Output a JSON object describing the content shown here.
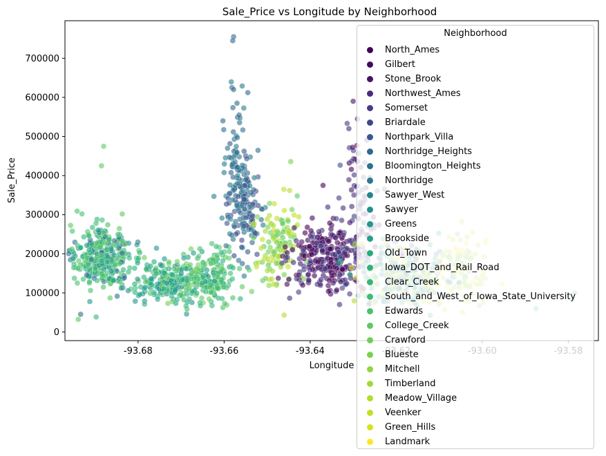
{
  "chart_data": {
    "type": "scatter",
    "title": "Sale_Price vs Longitude by Neighborhood",
    "xlabel": "Longitude",
    "ylabel": "Sale_Price",
    "xlim": [
      -93.697,
      -93.573
    ],
    "ylim": [
      -22000,
      796000
    ],
    "xticks": [
      "-93.68",
      "-93.66",
      "-93.64",
      "-93.62",
      "-93.60",
      "-93.58"
    ],
    "xtick_values": [
      -93.68,
      -93.66,
      -93.64,
      -93.62,
      -93.6,
      -93.58
    ],
    "yticks": [
      "0",
      "100000",
      "200000",
      "300000",
      "400000",
      "500000",
      "600000",
      "700000"
    ],
    "ytick_values": [
      0,
      100000,
      200000,
      300000,
      400000,
      500000,
      600000,
      700000
    ],
    "grid": false,
    "legend": {
      "title": "Neighborhood",
      "placement": "upper-right",
      "items": [
        {
          "name": "North_Ames",
          "color": "#440154"
        },
        {
          "name": "Gilbert",
          "color": "#46085c"
        },
        {
          "name": "Stone_Brook",
          "color": "#471365"
        },
        {
          "name": "Northwest_Ames",
          "color": "#472d7b"
        },
        {
          "name": "Somerset",
          "color": "#433e85"
        },
        {
          "name": "Briardale",
          "color": "#3e4989"
        },
        {
          "name": "Northpark_Villa",
          "color": "#38588c"
        },
        {
          "name": "Northridge_Heights",
          "color": "#31688e"
        },
        {
          "name": "Bloomington_Heights",
          "color": "#2c728e"
        },
        {
          "name": "Northridge",
          "color": "#287c8e"
        },
        {
          "name": "Sawyer_West",
          "color": "#24868e"
        },
        {
          "name": "Sawyer",
          "color": "#21918c"
        },
        {
          "name": "Greens",
          "color": "#1f9a8a"
        },
        {
          "name": "Brookside",
          "color": "#1fa287"
        },
        {
          "name": "Old_Town",
          "color": "#25ac82"
        },
        {
          "name": "Iowa_DOT_and_Rail_Road",
          "color": "#2db27d"
        },
        {
          "name": "Clear_Creek",
          "color": "#35b779"
        },
        {
          "name": "South_and_West_of_Iowa_State_University",
          "color": "#3fbc73"
        },
        {
          "name": "Edwards",
          "color": "#4ac16d"
        },
        {
          "name": "College_Creek",
          "color": "#5ec962"
        },
        {
          "name": "Crawford",
          "color": "#6ece58"
        },
        {
          "name": "Blueste",
          "color": "#7ad151"
        },
        {
          "name": "Mitchell",
          "color": "#8fd744"
        },
        {
          "name": "Timberland",
          "color": "#a0da39"
        },
        {
          "name": "Meadow_Village",
          "color": "#b0dd2f"
        },
        {
          "name": "Veenker",
          "color": "#c2df23"
        },
        {
          "name": "Green_Hills",
          "color": "#d8e219"
        },
        {
          "name": "Landmark",
          "color": "#fde725"
        }
      ]
    },
    "clusters": [
      {
        "x": -93.6885,
        "y": 190000,
        "sx": 0.0035,
        "sy": 40000,
        "n": 340,
        "series": [
          16,
          17,
          18,
          12,
          19,
          15,
          8
        ]
      },
      {
        "x": -93.6735,
        "y": 130000,
        "sx": 0.0035,
        "sy": 28000,
        "n": 220,
        "series": [
          11,
          12,
          13,
          14,
          15,
          18,
          20
        ]
      },
      {
        "x": -93.6635,
        "y": 140000,
        "sx": 0.0032,
        "sy": 35000,
        "n": 200,
        "series": [
          15,
          16,
          17,
          18,
          19,
          20,
          12
        ]
      },
      {
        "x": -93.6555,
        "y": 330000,
        "sx": 0.0022,
        "sy": 70000,
        "n": 160,
        "series": [
          7,
          8,
          9,
          5,
          6
        ]
      },
      {
        "x": -93.6575,
        "y": 470000,
        "sx": 0.0012,
        "sy": 80000,
        "n": 40,
        "series": [
          7,
          8,
          9
        ]
      },
      {
        "x": -93.6475,
        "y": 220000,
        "sx": 0.0025,
        "sy": 55000,
        "n": 130,
        "series": [
          19,
          20,
          21,
          22,
          23,
          24,
          25
        ]
      },
      {
        "x": -93.6355,
        "y": 190000,
        "sx": 0.0045,
        "sy": 40000,
        "n": 320,
        "series": [
          0,
          1,
          2,
          3,
          4
        ]
      },
      {
        "x": -93.6285,
        "y": 320000,
        "sx": 0.0025,
        "sy": 90000,
        "n": 70,
        "series": [
          0,
          2,
          3,
          4,
          5
        ]
      },
      {
        "x": -93.6185,
        "y": 150000,
        "sx": 0.0055,
        "sy": 40000,
        "n": 260,
        "series": [
          8,
          9,
          10,
          11,
          12,
          13,
          14,
          24,
          25,
          26
        ]
      },
      {
        "x": -93.6045,
        "y": 170000,
        "sx": 0.0035,
        "sy": 55000,
        "n": 90,
        "series": [
          20,
          21,
          22,
          23,
          24,
          25,
          26,
          27
        ]
      }
    ],
    "outliers": [
      {
        "x": -93.6578,
        "y": 755000,
        "s": 7
      },
      {
        "x": -93.658,
        "y": 745000,
        "s": 7
      },
      {
        "x": -93.6582,
        "y": 625000,
        "s": 7
      },
      {
        "x": -93.6578,
        "y": 620000,
        "s": 7
      },
      {
        "x": -93.657,
        "y": 585000,
        "s": 7
      },
      {
        "x": -93.6565,
        "y": 555000,
        "s": 7
      },
      {
        "x": -93.6545,
        "y": 612000,
        "s": 7
      },
      {
        "x": -93.63,
        "y": 590000,
        "s": 2
      },
      {
        "x": -93.629,
        "y": 545000,
        "s": 2
      },
      {
        "x": -93.631,
        "y": 520000,
        "s": 3
      },
      {
        "x": -93.688,
        "y": 475000,
        "s": 19
      },
      {
        "x": -93.6885,
        "y": 425000,
        "s": 19
      },
      {
        "x": -93.5785,
        "y": 100000,
        "s": 15
      },
      {
        "x": -93.5875,
        "y": 60000,
        "s": 15
      },
      {
        "x": -93.637,
        "y": 375000,
        "s": 0
      }
    ]
  }
}
